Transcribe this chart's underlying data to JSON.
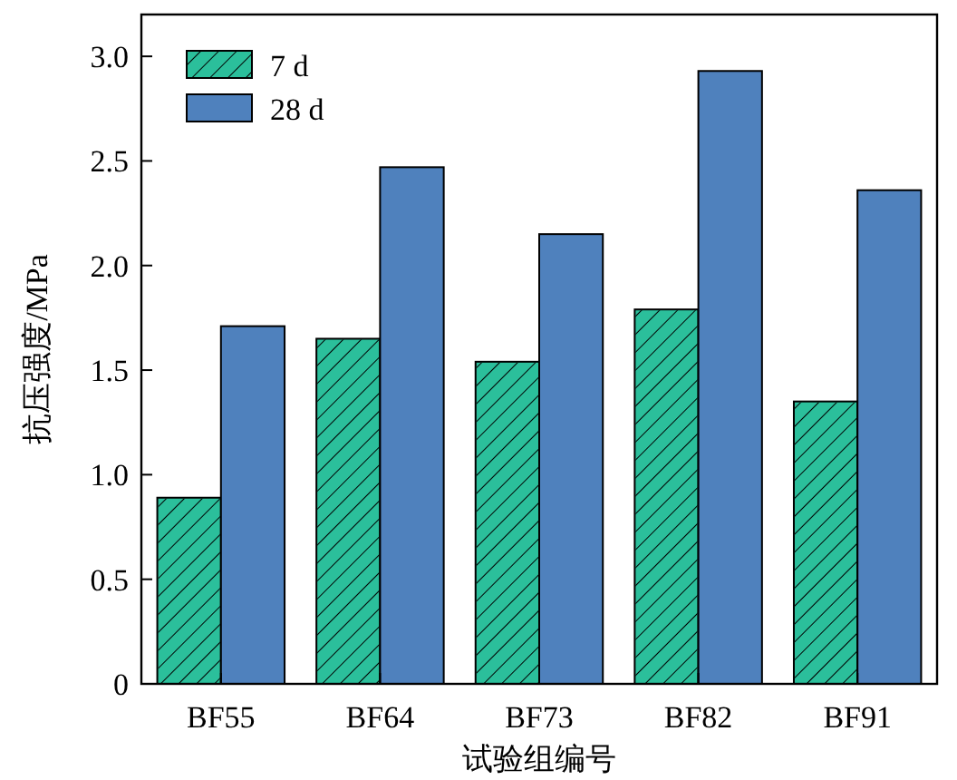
{
  "chart_data": {
    "type": "bar",
    "xlabel": "试验组编号",
    "ylabel": "抗压强度/MPa",
    "categories": [
      "BF55",
      "BF64",
      "BF73",
      "BF82",
      "BF91"
    ],
    "series": [
      {
        "name": "7 d",
        "color": "#2bbf9b",
        "values": [
          0.89,
          1.65,
          1.54,
          1.79,
          1.35
        ]
      },
      {
        "name": "28 d",
        "color": "#4f81bd",
        "values": [
          1.71,
          2.47,
          2.15,
          2.93,
          2.36
        ]
      }
    ],
    "ylim": [
      0,
      3.2
    ],
    "yticks": [
      0,
      {
        "value": 0.5,
        "label": "0.5"
      },
      {
        "value": 1,
        "label": "1.0"
      },
      {
        "value": 1.5,
        "label": "1.5"
      },
      {
        "value": 2,
        "label": "2.0"
      },
      {
        "value": 2.5,
        "label": "2.5"
      },
      {
        "value": 3,
        "label": "3.0"
      }
    ],
    "legend": "top left"
  }
}
